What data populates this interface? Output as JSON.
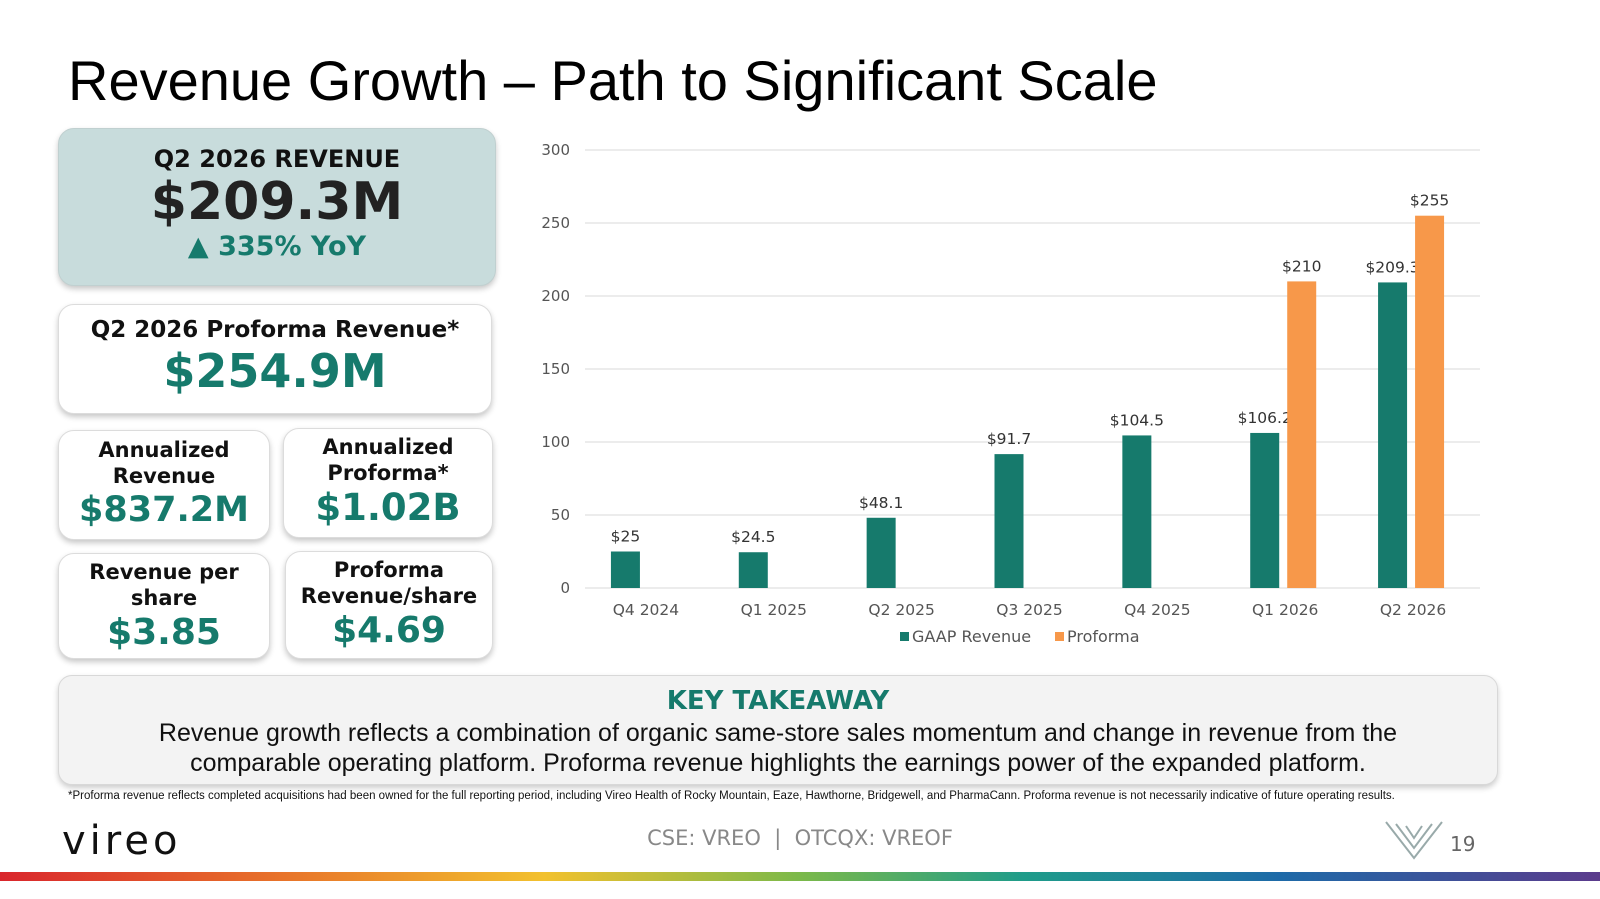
{
  "slide": {
    "title": "Revenue Growth – Path to Significant Scale",
    "page_number": "19",
    "ticker": "CSE: VREO  |  OTCQX: VREOF",
    "logo": "vireo"
  },
  "kpis": {
    "q2_revenue": {
      "label": "Q2 2026 REVENUE",
      "value": "$209.3M",
      "yoy": "▲ 335% YoY"
    },
    "q2_proforma": {
      "label": "Q2 2026 Proforma Revenue*",
      "value": "$254.9M"
    },
    "annualized_revenue": {
      "label_line1": "Annualized",
      "label_line2": "Revenue",
      "value": "$837.2M"
    },
    "annualized_proforma": {
      "label_line1": "Annualized",
      "label_line2": "Proforma*",
      "value": "$1.02B"
    },
    "revenue_per_share": {
      "label_line1": "Revenue per",
      "label_line2": "share",
      "value": "$3.85"
    },
    "proforma_per_share": {
      "label_line1": "Proforma",
      "label_line2": "Revenue/share",
      "value": "$4.69"
    }
  },
  "takeaway": {
    "title": "KEY TAKEAWAY",
    "body": "Revenue growth reflects a combination of organic same-store sales momentum and change in revenue from the comparable operating platform. Proforma revenue highlights the earnings power of the expanded platform."
  },
  "footnote": "*Proforma revenue reflects completed acquisitions had been owned for the full reporting period, including Vireo Health of Rocky Mountain, Eaze, Hawthorne, Bridgewell, and PharmaCann.  Proforma revenue is not necessarily indicative of future operating results.",
  "colors": {
    "gaap": "#167a6c",
    "proforma": "#f7984a",
    "accent": "#167a6c"
  },
  "chart_data": {
    "type": "bar",
    "categories": [
      "Q4 2024",
      "Q1 2025",
      "Q2 2025",
      "Q3 2025",
      "Q4 2025",
      "Q1 2026",
      "Q2 2026"
    ],
    "series": [
      {
        "name": "GAAP Revenue",
        "values": [
          25,
          24.5,
          48.1,
          91.7,
          104.5,
          106.2,
          209.3
        ],
        "labels": [
          "$25",
          "$24.5",
          "$48.1",
          "$91.7",
          "$104.5",
          "$106.2",
          "$209.3"
        ]
      },
      {
        "name": "Proforma",
        "values": [
          null,
          null,
          null,
          null,
          null,
          210,
          255
        ],
        "labels": [
          "",
          "",
          "",
          "",
          "",
          "$210",
          "$255"
        ]
      }
    ],
    "ylim": [
      0,
      300
    ],
    "yticks": [
      0,
      50,
      100,
      150,
      200,
      250,
      300
    ],
    "grid": true,
    "legend": "bottom"
  }
}
